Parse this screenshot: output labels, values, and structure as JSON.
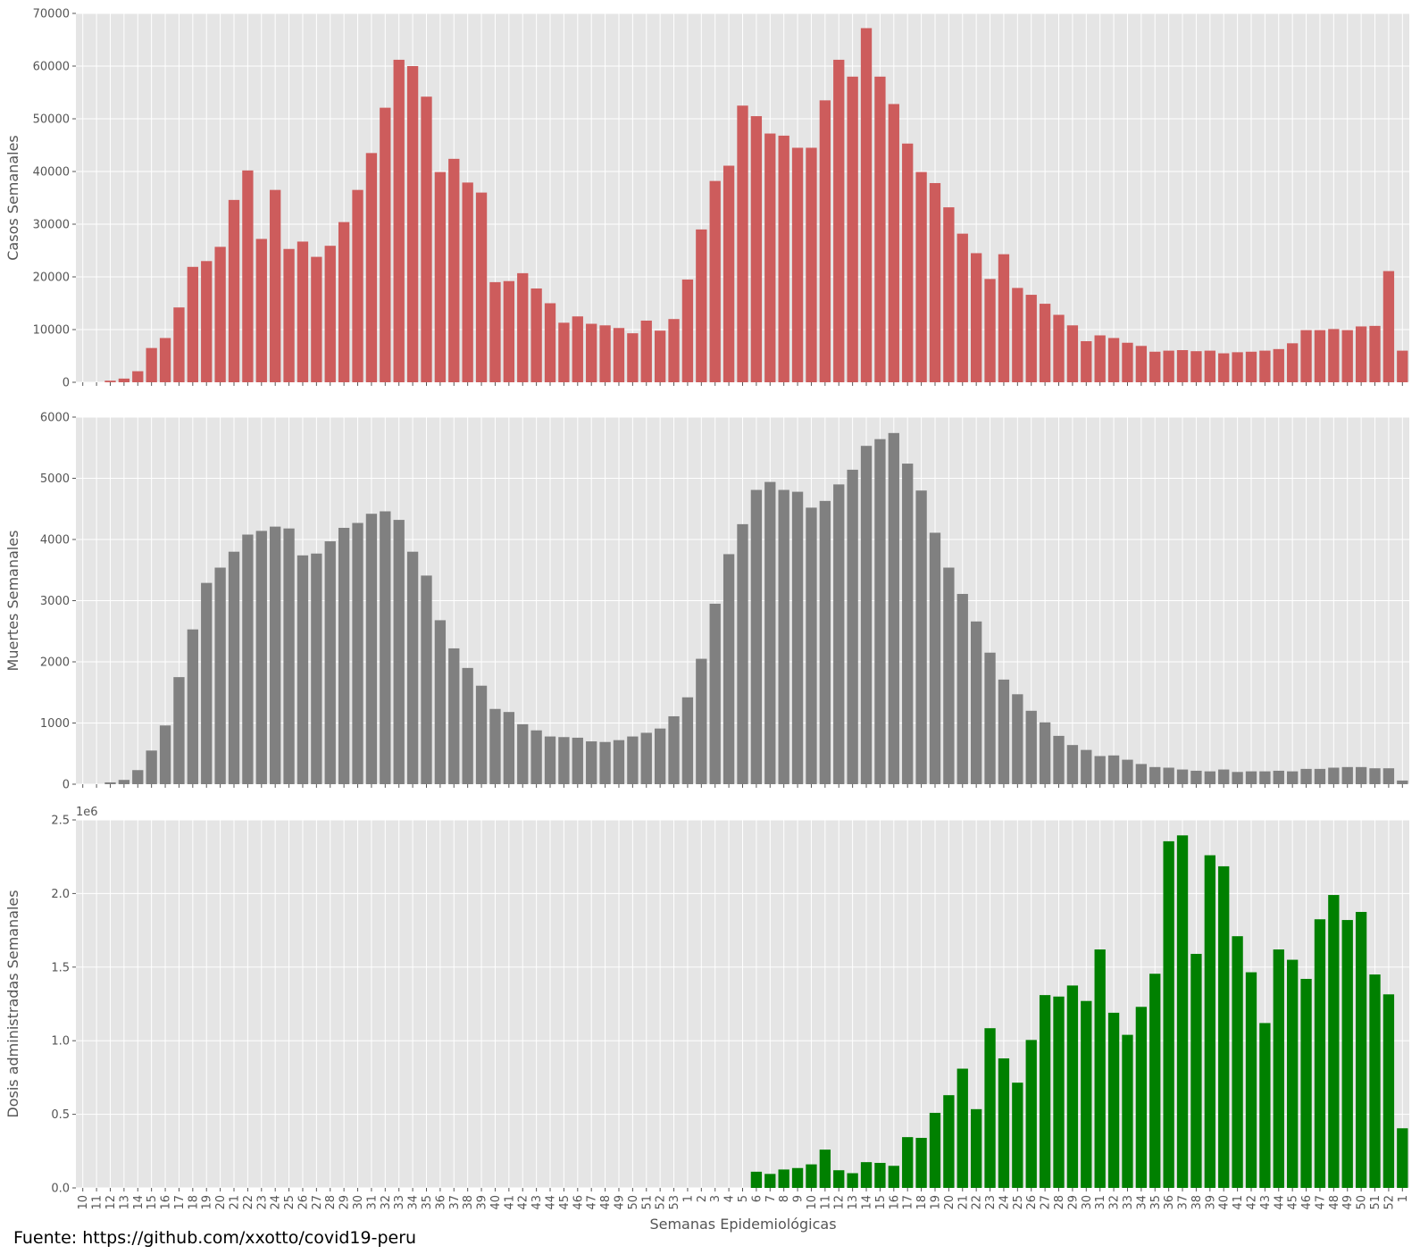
{
  "figure": {
    "source_note": "Fuente: https://github.com/xxotto/covid19-peru",
    "shared_xlabel": "Semanas Epidemiológicas"
  },
  "x_categories": [
    "10",
    "11",
    "12",
    "13",
    "14",
    "15",
    "16",
    "17",
    "18",
    "19",
    "20",
    "21",
    "22",
    "23",
    "24",
    "25",
    "26",
    "27",
    "28",
    "29",
    "30",
    "31",
    "32",
    "33",
    "34",
    "35",
    "36",
    "37",
    "38",
    "39",
    "40",
    "41",
    "42",
    "43",
    "44",
    "45",
    "46",
    "47",
    "48",
    "49",
    "50",
    "51",
    "52",
    "53",
    "1",
    "2",
    "3",
    "4",
    "5",
    "6",
    "7",
    "8",
    "9",
    "10",
    "11",
    "12",
    "13",
    "14",
    "15",
    "16",
    "17",
    "18",
    "19",
    "20",
    "21",
    "22",
    "23",
    "24",
    "25",
    "26",
    "27",
    "28",
    "29",
    "30",
    "31",
    "32",
    "33",
    "34",
    "35",
    "36",
    "37",
    "38",
    "39",
    "40",
    "41",
    "42",
    "43",
    "44",
    "45",
    "46",
    "47",
    "48",
    "49",
    "50",
    "51",
    "52",
    "1"
  ],
  "chart_data": [
    {
      "type": "bar",
      "ylabel": "Casos Semanales",
      "ylim": [
        0,
        70000
      ],
      "yticks": [
        0,
        10000,
        20000,
        30000,
        40000,
        50000,
        60000,
        70000
      ],
      "ytick_labels": [
        "0",
        "10000",
        "20000",
        "30000",
        "40000",
        "50000",
        "60000",
        "70000"
      ],
      "color": "#cd5c5c",
      "grid": true,
      "values": [
        0,
        0,
        300,
        700,
        2100,
        6500,
        8400,
        14200,
        21900,
        23000,
        25700,
        34600,
        40200,
        27200,
        36500,
        25300,
        26700,
        23800,
        25900,
        30400,
        36500,
        43500,
        52100,
        61200,
        60000,
        54200,
        39900,
        42400,
        37900,
        36000,
        19000,
        19200,
        20700,
        17800,
        15000,
        11300,
        12500,
        11100,
        10800,
        10300,
        9300,
        11700,
        9800,
        12000,
        19500,
        29000,
        38200,
        41100,
        52500,
        50500,
        47200,
        46800,
        44500,
        44500,
        53500,
        61200,
        58000,
        67200,
        58000,
        52800,
        45300,
        39900,
        37800,
        33200,
        28200,
        24500,
        19600,
        24300,
        17900,
        16600,
        14900,
        12800,
        10800,
        7800,
        8900,
        8400,
        7500,
        6900,
        5800,
        6000,
        6100,
        5900,
        6000,
        5500,
        5700,
        5800,
        6000,
        6300,
        7400,
        9900,
        9900,
        10100,
        9900,
        10600,
        10700,
        21100,
        6000
      ]
    },
    {
      "type": "bar",
      "ylabel": "Muertes Semanales",
      "ylim": [
        0,
        6000
      ],
      "yticks": [
        0,
        1000,
        2000,
        3000,
        4000,
        5000,
        6000
      ],
      "ytick_labels": [
        "0",
        "1000",
        "2000",
        "3000",
        "4000",
        "5000",
        "6000"
      ],
      "color": "#808080",
      "grid": true,
      "values": [
        0,
        0,
        30,
        70,
        230,
        550,
        960,
        1750,
        2530,
        3290,
        3540,
        3800,
        4080,
        4140,
        4210,
        4180,
        3740,
        3770,
        3970,
        4190,
        4270,
        4420,
        4460,
        4320,
        3800,
        3410,
        2680,
        2220,
        1900,
        1610,
        1230,
        1180,
        980,
        880,
        780,
        770,
        760,
        700,
        690,
        720,
        780,
        840,
        910,
        1110,
        1420,
        2050,
        2950,
        3760,
        4250,
        4810,
        4940,
        4810,
        4780,
        4520,
        4630,
        4900,
        5140,
        5530,
        5640,
        5740,
        5240,
        4800,
        4110,
        3540,
        3110,
        2660,
        2150,
        1710,
        1470,
        1200,
        1010,
        790,
        640,
        560,
        460,
        470,
        400,
        330,
        280,
        270,
        240,
        220,
        210,
        240,
        200,
        210,
        210,
        220,
        210,
        250,
        250,
        270,
        280,
        280,
        260,
        260,
        60
      ]
    },
    {
      "type": "bar",
      "ylabel": "Dosis administradas Semanales",
      "ylim": [
        0,
        2500000
      ],
      "yticks": [
        0,
        500000,
        1000000,
        1500000,
        2000000,
        2500000
      ],
      "ytick_labels": [
        "0.0",
        "0.5",
        "1.0",
        "1.5",
        "2.0",
        "2.5"
      ],
      "offset_label": "1e6",
      "color": "#008000",
      "grid": true,
      "values": [
        0,
        0,
        0,
        0,
        0,
        0,
        0,
        0,
        0,
        0,
        0,
        0,
        0,
        0,
        0,
        0,
        0,
        0,
        0,
        0,
        0,
        0,
        0,
        0,
        0,
        0,
        0,
        0,
        0,
        0,
        0,
        0,
        0,
        0,
        0,
        0,
        0,
        0,
        0,
        0,
        0,
        0,
        0,
        0,
        0,
        0,
        0,
        0,
        0,
        110000,
        95000,
        125000,
        135000,
        160000,
        260000,
        120000,
        100000,
        175000,
        170000,
        150000,
        345000,
        340000,
        510000,
        630000,
        810000,
        535000,
        1085000,
        880000,
        715000,
        1005000,
        1310000,
        1300000,
        1375000,
        1270000,
        1620000,
        1190000,
        1040000,
        1230000,
        1455000,
        2355000,
        2395000,
        1590000,
        2260000,
        2185000,
        1710000,
        1465000,
        1120000,
        1620000,
        1550000,
        1420000,
        1825000,
        1990000,
        1820000,
        1875000,
        1450000,
        1315000,
        405000
      ]
    }
  ]
}
